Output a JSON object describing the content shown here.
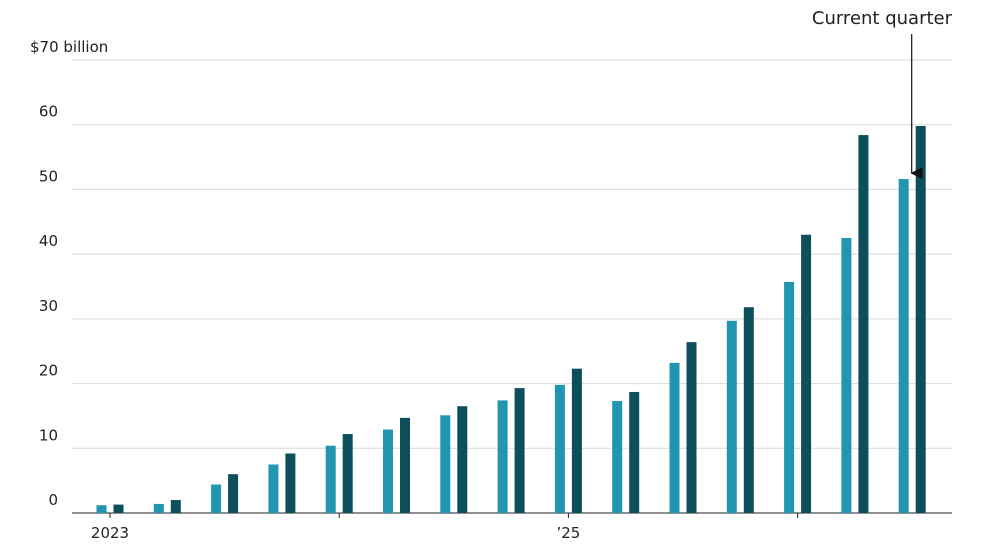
{
  "chart_data": {
    "type": "bar",
    "annotation": "Current quarter",
    "categories": [
      "2023",
      null,
      null,
      null,
      null,
      null,
      null,
      null,
      "’25",
      null,
      null,
      null,
      null,
      null,
      null
    ],
    "series": [
      {
        "color": "#2196b0",
        "values": [
          1.2,
          1.4,
          4.4,
          7.5,
          10.4,
          12.9,
          15.1,
          17.4,
          19.8,
          17.3,
          23.2,
          29.7,
          35.7,
          42.5,
          51.6
        ]
      },
      {
        "color": "#0d4f5a",
        "values": [
          1.3,
          2.0,
          6.0,
          9.2,
          12.2,
          14.7,
          16.5,
          19.3,
          22.3,
          18.7,
          26.4,
          31.8,
          43.0,
          58.4,
          59.8
        ]
      }
    ],
    "ylim": [
      0,
      70
    ],
    "yticks": [
      0,
      10,
      20,
      30,
      40,
      50,
      60,
      {
        "value": 70,
        "label": "$70 billion"
      }
    ],
    "grid": true
  }
}
